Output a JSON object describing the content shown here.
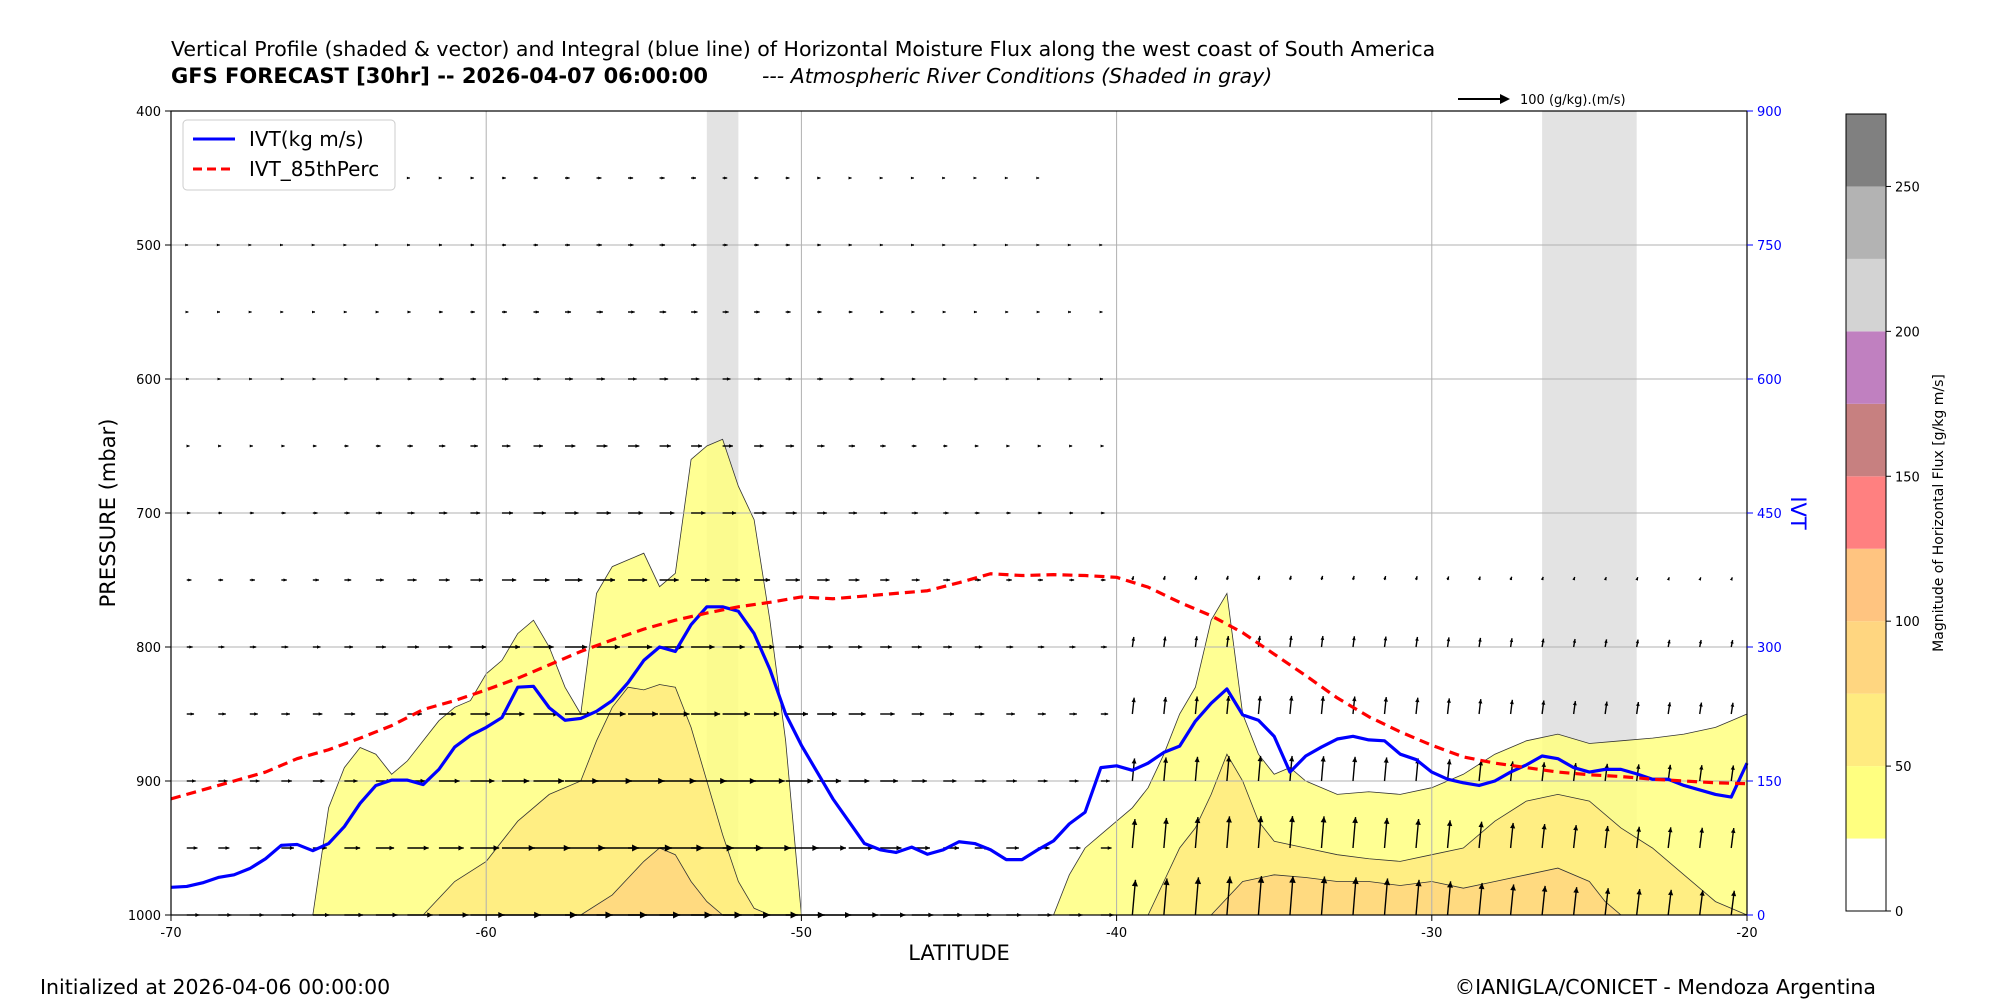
{
  "header": {
    "title": "Vertical Profile (shaded & vector) and Integral (blue line) of Horizontal Moisture Flux along the west coast of South America",
    "forecast": "GFS FORECAST [30hr] -- 2026-04-07 06:00:00",
    "ar_note": "--- Atmospheric River Conditions (Shaded in gray)"
  },
  "footer": {
    "initialized": "Initialized at 2026-04-06 00:00:00",
    "credit": "©IANIGLA/CONICET - Mendoza Argentina"
  },
  "colors": {
    "ivt": "#0000ff",
    "p85": "#ff0000",
    "ar_shade": "#d9d9d9",
    "axis": "#000000"
  },
  "chart_data": {
    "type": "area",
    "xlabel": "LATITUDE",
    "ylabel": "PRESSURE (mbar)",
    "y2label": "IVT",
    "xlim": [
      -70,
      -20
    ],
    "ylim": [
      1000,
      400
    ],
    "y2lim": [
      0,
      900
    ],
    "x_ticks": [
      -70,
      -60,
      -50,
      -40,
      -30,
      -20
    ],
    "y_ticks": [
      400,
      500,
      600,
      700,
      800,
      900,
      1000
    ],
    "y2_ticks": [
      0,
      150,
      300,
      450,
      600,
      750,
      900
    ],
    "grid": true,
    "legend_position": "top-left",
    "vector_key": "100 (g/kg).(m/s)",
    "ar_bands": [
      [
        -53,
        -52
      ],
      [
        -26.5,
        -23.5
      ]
    ],
    "series": [
      {
        "name": "IVT(kg m/s)",
        "axis": "IVT",
        "style": "solid",
        "x": [
          -70,
          -69.5,
          -69,
          -68.5,
          -68,
          -67.5,
          -67,
          -66.5,
          -66,
          -65.5,
          -65,
          -64.5,
          -64,
          -63.5,
          -63,
          -62.5,
          -62,
          -61.5,
          -61,
          -60.5,
          -60,
          -59.5,
          -59,
          -58.5,
          -58,
          -57.5,
          -57,
          -56.5,
          -56,
          -55.5,
          -55,
          -54.5,
          -54,
          -53.5,
          -53,
          -52.5,
          -52,
          -51.5,
          -51,
          -50.5,
          -50,
          -49.5,
          -49,
          -48.5,
          -48,
          -47.5,
          -47,
          -46.5,
          -46,
          -45.5,
          -45,
          -44.5,
          -44,
          -43.5,
          -43,
          -42.5,
          -42,
          -41.5,
          -41,
          -40.5,
          -40,
          -39.5,
          -39,
          -38.5,
          -38,
          -37.5,
          -37,
          -36.5,
          -36,
          -35.5,
          -35,
          -34.5,
          -34,
          -33.5,
          -33,
          -32.5,
          -32,
          -31.5,
          -31,
          -30.5,
          -30,
          -29.5,
          -29,
          -28.5,
          -28,
          -27.5,
          -27,
          -26.5,
          -26,
          -25.5,
          -25,
          -24.5,
          -24,
          -23.5,
          -23,
          -22.5,
          -22,
          -21.5,
          -21,
          -20.5,
          -20
        ],
        "values": [
          31,
          32,
          36,
          42,
          45,
          52,
          63,
          78,
          79,
          72,
          80,
          99,
          125,
          145,
          151,
          151,
          146,
          163,
          188,
          201,
          210,
          221,
          255,
          256,
          232,
          218,
          220,
          228,
          240,
          260,
          285,
          300,
          295,
          325,
          345,
          345,
          340,
          315,
          275,
          225,
          190,
          160,
          130,
          105,
          80,
          73,
          70,
          76,
          68,
          73,
          82,
          80,
          73,
          62,
          62,
          73,
          83,
          102,
          115,
          165,
          167,
          162,
          170,
          182,
          189,
          217,
          237,
          253,
          224,
          218,
          200,
          160,
          178,
          188,
          197,
          200,
          196,
          195,
          180,
          174,
          160,
          152,
          148,
          145,
          150,
          160,
          168,
          178,
          175,
          165,
          160,
          163,
          163,
          158,
          152,
          152,
          145,
          140,
          135,
          132,
          170
        ]
      },
      {
        "name": "IVT_85thPerc",
        "axis": "IVT",
        "style": "dashed",
        "x": [
          -70,
          -69,
          -68,
          -67,
          -66,
          -65,
          -64,
          -63,
          -62,
          -61,
          -60,
          -59,
          -58,
          -57,
          -56,
          -55,
          -54,
          -53,
          -52,
          -51,
          -50,
          -49,
          -48,
          -47,
          -46,
          -45,
          -44,
          -43,
          -42,
          -41,
          -40,
          -39,
          -38,
          -37,
          -36,
          -35,
          -34,
          -33,
          -32,
          -31,
          -30,
          -29,
          -28,
          -27,
          -26,
          -25,
          -24,
          -23,
          -22,
          -21,
          -20
        ],
        "values": [
          130,
          140,
          150,
          160,
          175,
          185,
          198,
          212,
          230,
          240,
          252,
          265,
          280,
          295,
          308,
          320,
          330,
          338,
          345,
          350,
          356,
          354,
          357,
          360,
          363,
          372,
          382,
          380,
          381,
          380,
          378,
          367,
          350,
          335,
          316,
          292,
          268,
          243,
          222,
          205,
          190,
          177,
          170,
          165,
          160,
          157,
          155,
          152,
          150,
          148,
          147
        ]
      }
    ],
    "flux_contours": [
      {
        "level": 25,
        "x": [
          -65.5,
          -65,
          -64.5,
          -64,
          -63.5,
          -63,
          -62.5,
          -62,
          -61.5,
          -61,
          -60.5,
          -60,
          -59.5,
          -59,
          -58.5,
          -58,
          -57.5,
          -57,
          -56.5,
          -56,
          -55.5,
          -55,
          -54.5,
          -54,
          -53.5,
          -53,
          -52.5,
          -52,
          -51.5,
          -51,
          -50.5,
          -50
        ],
        "top": [
          1000,
          920,
          890,
          875,
          880,
          895,
          885,
          870,
          855,
          845,
          840,
          820,
          810,
          790,
          780,
          800,
          830,
          850,
          760,
          740,
          735,
          730,
          755,
          745,
          660,
          650,
          645,
          680,
          705,
          780,
          870,
          1000
        ]
      },
      {
        "level": 50,
        "x": [
          -62,
          -61,
          -60,
          -59,
          -58,
          -57,
          -56.5,
          -56,
          -55.5,
          -55,
          -54.5,
          -54,
          -53.5,
          -53,
          -52.5,
          -52,
          -51.5,
          -51
        ],
        "top": [
          1000,
          975,
          960,
          930,
          910,
          900,
          870,
          845,
          830,
          832,
          828,
          830,
          860,
          900,
          940,
          975,
          995,
          1000
        ]
      },
      {
        "level": 75,
        "x": [
          -57,
          -56,
          -55,
          -54.5,
          -54,
          -53.5,
          -53,
          -52.5,
          -52
        ],
        "top": [
          1000,
          985,
          960,
          950,
          955,
          975,
          990,
          1000,
          1000
        ]
      },
      {
        "level": 25,
        "x": [
          -42,
          -41.5,
          -41,
          -40.5,
          -40,
          -39.5,
          -39,
          -38.5,
          -38,
          -37.5,
          -37,
          -36.5,
          -36,
          -35.5,
          -35,
          -34.5,
          -34,
          -33,
          -32,
          -31,
          -30,
          -29,
          -28,
          -27,
          -26,
          -25,
          -24,
          -23,
          -22,
          -21,
          -20.5,
          -20
        ],
        "top": [
          1000,
          970,
          950,
          940,
          930,
          920,
          905,
          880,
          850,
          830,
          780,
          760,
          850,
          880,
          895,
          890,
          900,
          910,
          908,
          910,
          905,
          895,
          880,
          870,
          865,
          872,
          870,
          868,
          865,
          860,
          855,
          850
        ]
      },
      {
        "level": 50,
        "x": [
          -39,
          -38.5,
          -38,
          -37.5,
          -37,
          -36.5,
          -36,
          -35.5,
          -35,
          -34,
          -33,
          -32,
          -31,
          -30,
          -29,
          -28,
          -27,
          -26,
          -25,
          -24,
          -23,
          -22,
          -21,
          -20
        ],
        "top": [
          1000,
          975,
          950,
          935,
          910,
          880,
          900,
          930,
          945,
          950,
          955,
          958,
          960,
          955,
          950,
          930,
          915,
          910,
          915,
          935,
          950,
          970,
          990,
          1000
        ]
      },
      {
        "level": 75,
        "x": [
          -37,
          -36,
          -35,
          -34,
          -33,
          -32,
          -31,
          -30,
          -29,
          -28,
          -27,
          -26,
          -25,
          -24.5,
          -24
        ],
        "top": [
          1000,
          975,
          970,
          972,
          975,
          975,
          978,
          975,
          980,
          975,
          970,
          965,
          975,
          990,
          1000
        ]
      }
    ],
    "colorbar": {
      "label": "Magnitude of Horizontal Flux [g/kg m/s]",
      "levels": [
        0,
        25,
        50,
        75,
        100,
        125,
        150,
        175,
        200,
        225,
        250,
        275
      ],
      "colors": [
        "#ffffff",
        "#ffff80",
        "#ffeb80",
        "#ffd680",
        "#ffc480",
        "#ff8080",
        "#c78080",
        "#c080c0",
        "#d3d3d3",
        "#b3b3b3",
        "#808080"
      ],
      "ticks": [
        0,
        50,
        100,
        150,
        200,
        250
      ]
    }
  }
}
